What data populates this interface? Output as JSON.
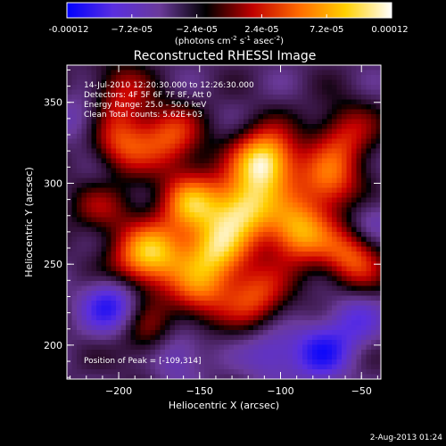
{
  "colorbar": {
    "tick_labels": [
      "-0.00012",
      "−7.2e-05",
      "−2.4e-05",
      "2.4e-05",
      "7.2e-05",
      "0.00012"
    ],
    "tick_values": [
      -0.00012,
      -7.2e-05,
      -2.4e-05,
      2.4e-05,
      7.2e-05,
      0.00012
    ],
    "range": [
      -0.00012,
      0.00012
    ],
    "units": {
      "base": "(photons cm",
      "e1": "-2",
      "mid1": " s",
      "e2": "-1",
      "mid2": " asec",
      "e3": "-2",
      "end": ")"
    },
    "colors": [
      "#0000ff",
      "#5a2ee0",
      "#6a3a9a",
      "#000000",
      "#c00000",
      "#ff6a00",
      "#ffd000",
      "#ffffff"
    ]
  },
  "chart_data": {
    "type": "heatmap",
    "title": "Reconstructed RHESSI Image",
    "xlabel": "Heliocentric X (arcsec)",
    "ylabel": "Heliocentric Y (arcsec)",
    "xlim": [
      -232,
      -38
    ],
    "ylim": [
      179,
      373
    ],
    "x_ticks": [
      -200,
      -150,
      -100,
      -50
    ],
    "y_ticks": [
      200,
      250,
      300,
      350
    ],
    "x_tick_labels": [
      "−200",
      "−150",
      "−100",
      "−50"
    ],
    "y_tick_labels": [
      "200",
      "250",
      "300",
      "350"
    ],
    "annotations": [
      "14-Jul-2010 12:20:30.000 to 12:26:30.000",
      "Detectors: 4F 5F 6F 7F 8F, Att 0",
      "Energy Range: 25.0 - 50.0 keV",
      "Clean     Total counts: 5.62E+03"
    ],
    "peak_label": "Position of Peak = [-109,314]",
    "peak": [
      -109,
      314
    ],
    "bright_sources": [
      {
        "x": -109,
        "y": 314,
        "v": 1.0
      },
      {
        "x": -123,
        "y": 285,
        "v": 0.85
      },
      {
        "x": -90,
        "y": 270,
        "v": 0.8
      },
      {
        "x": -155,
        "y": 288,
        "v": 0.7
      },
      {
        "x": -140,
        "y": 258,
        "v": 0.75
      },
      {
        "x": -168,
        "y": 328,
        "v": 0.55
      },
      {
        "x": -200,
        "y": 325,
        "v": 0.55
      },
      {
        "x": -210,
        "y": 290,
        "v": 0.5
      },
      {
        "x": -175,
        "y": 258,
        "v": 0.6
      },
      {
        "x": -70,
        "y": 300,
        "v": 0.6
      },
      {
        "x": -55,
        "y": 255,
        "v": 0.65
      },
      {
        "x": -115,
        "y": 230,
        "v": 0.55
      },
      {
        "x": -150,
        "y": 232,
        "v": 0.5
      },
      {
        "x": -190,
        "y": 250,
        "v": 0.45
      },
      {
        "x": -180,
        "y": 205,
        "v": 0.35
      },
      {
        "x": -60,
        "y": 330,
        "v": 0.45
      },
      {
        "x": -200,
        "y": 355,
        "v": 0.4
      }
    ],
    "dark_sources": [
      {
        "x": -205,
        "y": 225,
        "v": -0.6
      },
      {
        "x": -75,
        "y": 195,
        "v": -0.55
      },
      {
        "x": -165,
        "y": 195,
        "v": -0.4
      },
      {
        "x": -105,
        "y": 195,
        "v": -0.35
      },
      {
        "x": -55,
        "y": 215,
        "v": -0.35
      },
      {
        "x": -220,
        "y": 340,
        "v": -0.3
      },
      {
        "x": -210,
        "y": 300,
        "v": -0.35
      },
      {
        "x": -45,
        "y": 275,
        "v": -0.3
      }
    ]
  },
  "timestamp": "2-Aug-2013 01:24"
}
